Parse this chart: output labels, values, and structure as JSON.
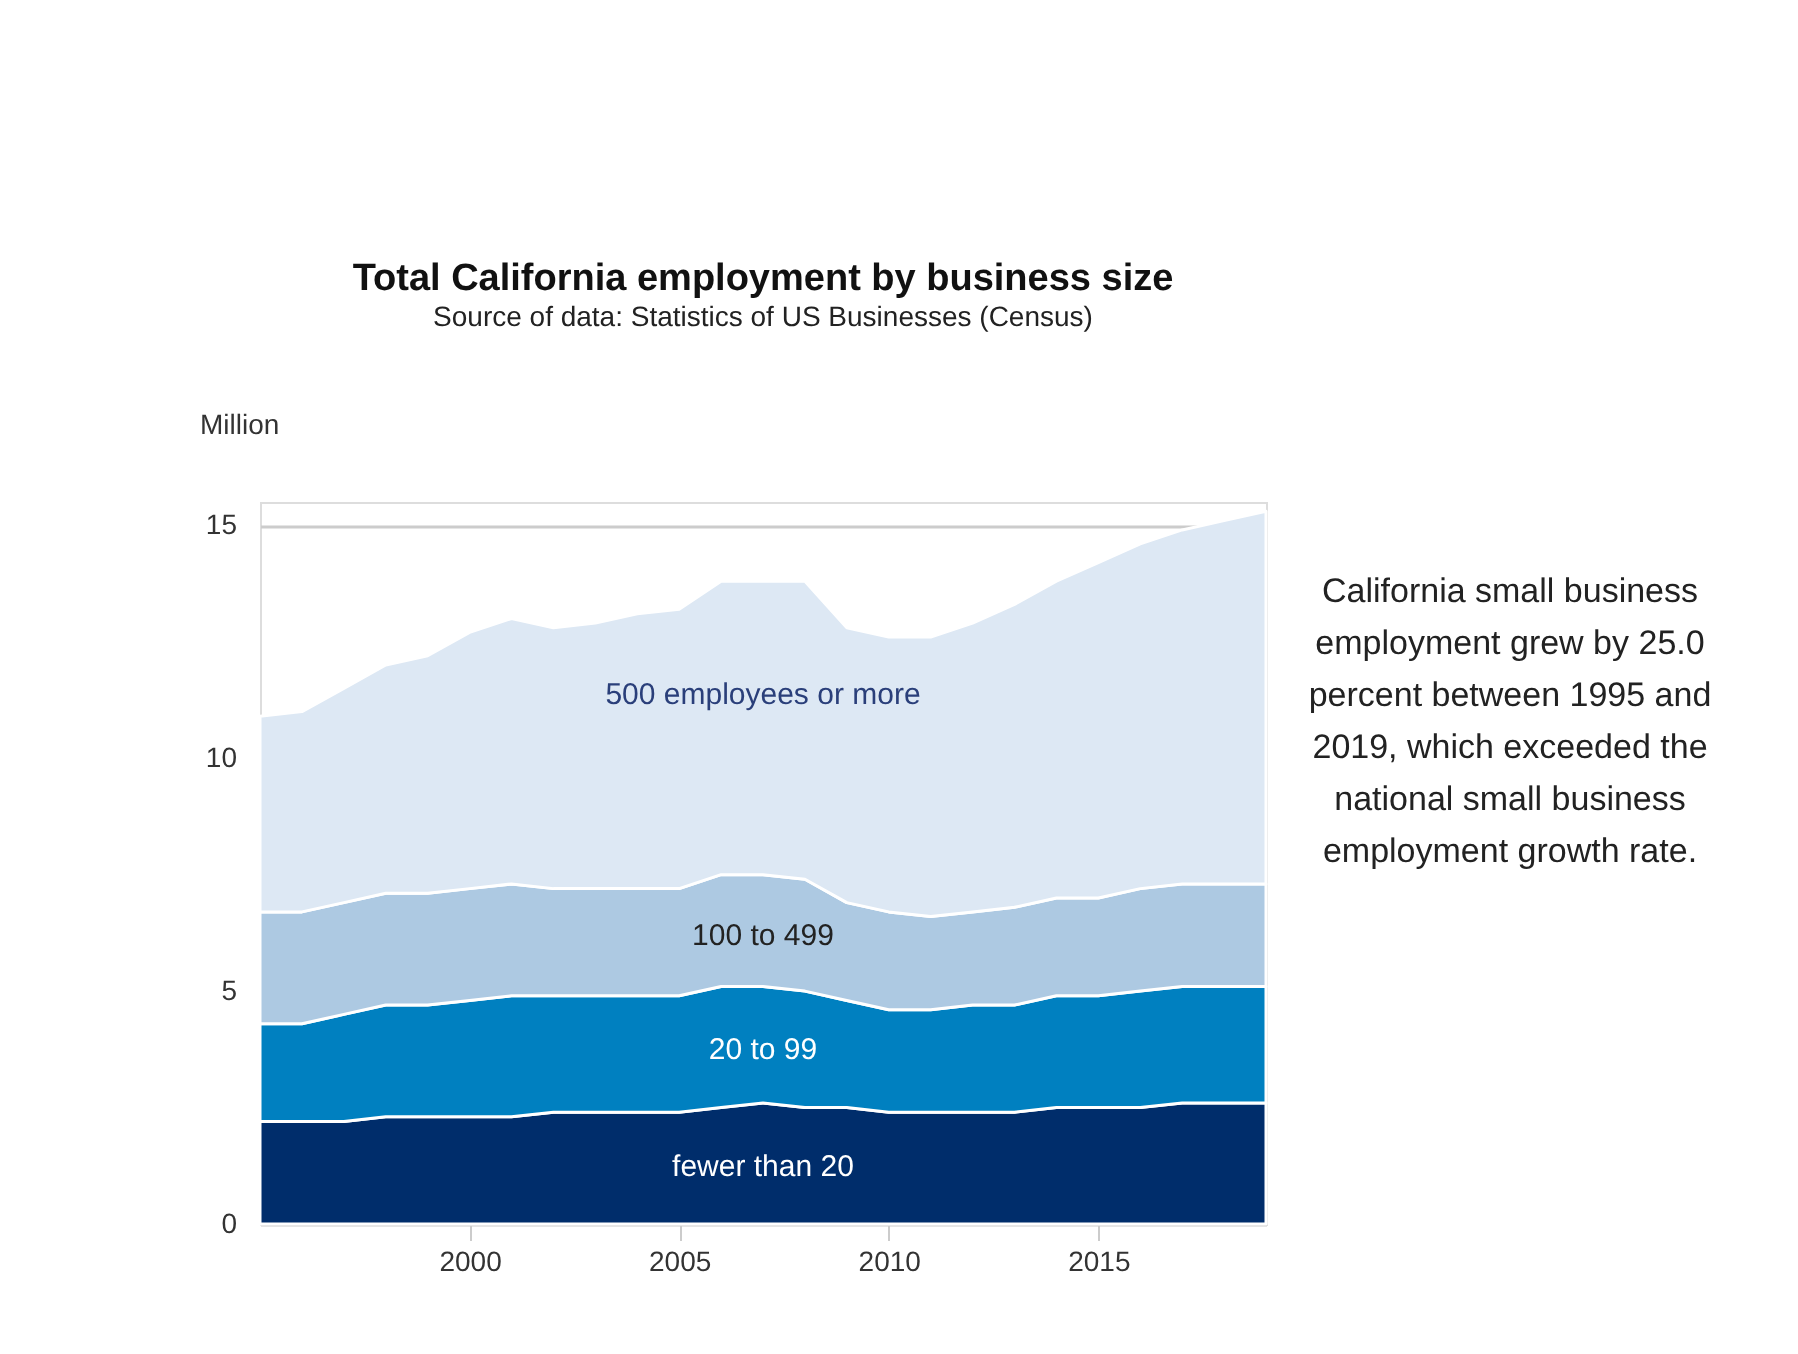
{
  "chart_data": {
    "type": "area",
    "stacked": true,
    "title": "Total California employment by business size",
    "subtitle": "Source of data: Statistics of US Businesses (Census)",
    "ylabel": "Million",
    "x": [
      1995,
      1996,
      1997,
      1998,
      1999,
      2000,
      2001,
      2002,
      2003,
      2004,
      2005,
      2006,
      2007,
      2008,
      2009,
      2010,
      2011,
      2012,
      2013,
      2014,
      2015,
      2016,
      2017,
      2018,
      2019
    ],
    "series": [
      {
        "name": "fewer than 20",
        "color": "#002d6b",
        "values": [
          2.2,
          2.2,
          2.2,
          2.3,
          2.3,
          2.3,
          2.3,
          2.4,
          2.4,
          2.4,
          2.4,
          2.5,
          2.6,
          2.5,
          2.5,
          2.4,
          2.4,
          2.4,
          2.4,
          2.5,
          2.5,
          2.5,
          2.6,
          2.6,
          2.6
        ]
      },
      {
        "name": "20 to 99",
        "color": "#0080c0",
        "values": [
          2.1,
          2.1,
          2.3,
          2.4,
          2.4,
          2.5,
          2.6,
          2.5,
          2.5,
          2.5,
          2.5,
          2.6,
          2.5,
          2.5,
          2.3,
          2.2,
          2.2,
          2.3,
          2.3,
          2.4,
          2.4,
          2.5,
          2.5,
          2.5,
          2.5
        ]
      },
      {
        "name": "100 to 499",
        "color": "#adc9e2",
        "values": [
          2.4,
          2.4,
          2.4,
          2.4,
          2.4,
          2.4,
          2.4,
          2.3,
          2.3,
          2.3,
          2.3,
          2.4,
          2.4,
          2.4,
          2.1,
          2.1,
          2.0,
          2.0,
          2.1,
          2.1,
          2.1,
          2.2,
          2.2,
          2.2,
          2.2
        ]
      },
      {
        "name": "500 employees or more",
        "color": "#dde8f4",
        "values": [
          4.2,
          4.3,
          4.6,
          4.9,
          5.1,
          5.5,
          5.7,
          5.6,
          5.7,
          5.9,
          6.0,
          6.3,
          6.3,
          6.4,
          5.9,
          5.9,
          6.0,
          6.2,
          6.5,
          6.8,
          7.2,
          7.4,
          7.6,
          7.8,
          8.0
        ]
      }
    ],
    "xlim": [
      1995,
      2019
    ],
    "xticks": [
      2000,
      2005,
      2010,
      2015
    ],
    "ylim": [
      0,
      15.5
    ],
    "yticks": [
      0,
      5,
      10,
      15
    ],
    "grid": "y",
    "legend": false,
    "annotations": [
      "California small business employment grew by 25.0 percent between 1995 and 2019, which exceeded the national small business employment growth rate."
    ]
  }
}
